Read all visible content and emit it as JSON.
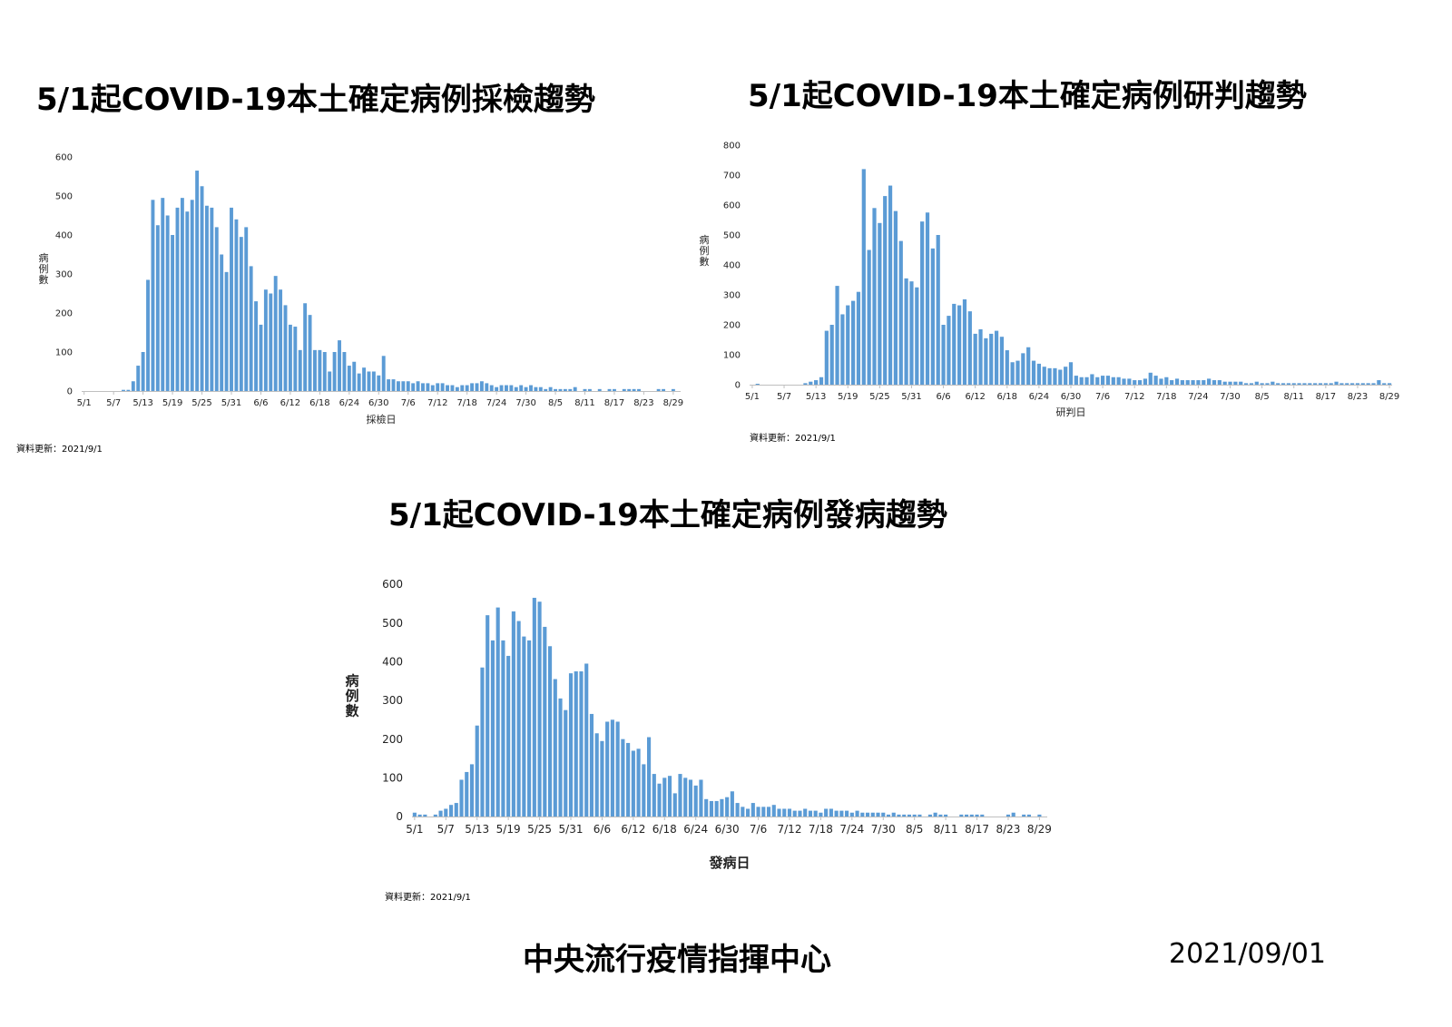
{
  "colors": {
    "bar": "#5B9BD5",
    "axis": "#BFBFBF",
    "text": "#222222"
  },
  "charts": [
    {
      "title": "5/1起COVID-19本土確定病例採檢趨勢",
      "update_text": "資料更新：2021/9/1"
    },
    {
      "title": "5/1起COVID-19本土確定病例研判趨勢",
      "update_text": "資料更新：2021/9/1"
    },
    {
      "title": "5/1起COVID-19本土確定病例發病趨勢",
      "update_text": "資料更新：2021/9/1"
    }
  ],
  "footer": {
    "org": "中央流行疫情指揮中心",
    "date": "2021/09/01"
  },
  "chart_data": [
    {
      "type": "bar",
      "title": "5/1起COVID-19本土確定病例採檢趨勢",
      "xlabel": "採檢日",
      "ylabel": "病例數",
      "ylim": [
        0,
        600
      ],
      "yticks": [
        0,
        100,
        200,
        300,
        400,
        500,
        600
      ],
      "start_date": "5/1",
      "xtick_labels": [
        "5/1",
        "5/7",
        "5/13",
        "5/19",
        "5/25",
        "5/31",
        "6/6",
        "6/12",
        "6/18",
        "6/24",
        "6/30",
        "7/6",
        "7/12",
        "7/18",
        "7/24",
        "7/30",
        "8/5",
        "8/11",
        "8/17",
        "8/23",
        "8/29"
      ],
      "values": [
        0,
        0,
        0,
        0,
        0,
        0,
        0,
        0,
        3,
        3,
        25,
        65,
        100,
        285,
        490,
        425,
        495,
        450,
        400,
        470,
        495,
        460,
        490,
        565,
        525,
        475,
        470,
        420,
        350,
        305,
        470,
        440,
        395,
        420,
        320,
        230,
        170,
        260,
        250,
        295,
        260,
        220,
        170,
        165,
        105,
        225,
        195,
        105,
        105,
        100,
        50,
        100,
        130,
        100,
        65,
        75,
        45,
        60,
        50,
        50,
        40,
        90,
        30,
        30,
        25,
        25,
        25,
        20,
        25,
        20,
        20,
        15,
        20,
        20,
        15,
        15,
        10,
        15,
        15,
        20,
        20,
        25,
        20,
        15,
        10,
        15,
        15,
        15,
        10,
        15,
        10,
        15,
        10,
        10,
        5,
        10,
        5,
        5,
        5,
        5,
        10,
        0,
        5,
        5,
        0,
        5,
        0,
        5,
        5,
        0,
        5,
        5,
        5,
        5,
        0,
        0,
        0,
        5,
        5,
        0,
        5,
        0
      ]
    },
    {
      "type": "bar",
      "title": "5/1起COVID-19本土確定病例研判趨勢",
      "xlabel": "研判日",
      "ylabel": "病例數",
      "ylim": [
        0,
        800
      ],
      "yticks": [
        0,
        100,
        200,
        300,
        400,
        500,
        600,
        700,
        800
      ],
      "start_date": "5/1",
      "xtick_labels": [
        "5/1",
        "5/7",
        "5/13",
        "5/19",
        "5/25",
        "5/31",
        "6/6",
        "6/12",
        "6/18",
        "6/24",
        "6/30",
        "7/6",
        "7/12",
        "7/18",
        "7/24",
        "7/30",
        "8/5",
        "8/11",
        "8/17",
        "8/23",
        "8/29"
      ],
      "values": [
        0,
        3,
        0,
        0,
        0,
        0,
        0,
        0,
        0,
        0,
        5,
        10,
        15,
        25,
        180,
        200,
        330,
        235,
        265,
        280,
        310,
        720,
        450,
        590,
        540,
        630,
        665,
        580,
        480,
        355,
        345,
        325,
        545,
        575,
        455,
        500,
        200,
        230,
        270,
        265,
        285,
        245,
        170,
        185,
        155,
        170,
        180,
        160,
        115,
        75,
        80,
        105,
        125,
        80,
        70,
        60,
        55,
        55,
        50,
        60,
        75,
        30,
        25,
        25,
        35,
        25,
        30,
        30,
        25,
        25,
        20,
        20,
        15,
        15,
        20,
        40,
        30,
        20,
        25,
        15,
        20,
        15,
        15,
        15,
        15,
        15,
        20,
        15,
        15,
        10,
        10,
        10,
        10,
        5,
        5,
        10,
        5,
        5,
        10,
        5,
        5,
        5,
        5,
        5,
        5,
        5,
        5,
        5,
        5,
        5,
        10,
        5,
        5,
        5,
        5,
        5,
        5,
        5,
        15,
        5,
        5
      ]
    },
    {
      "type": "bar",
      "title": "5/1起COVID-19本土確定病例發病趨勢",
      "xlabel": "發病日",
      "ylabel": "病例數",
      "ylim": [
        0,
        600
      ],
      "yticks": [
        0,
        100,
        200,
        300,
        400,
        500,
        600
      ],
      "start_date": "5/1",
      "xtick_labels": [
        "5/1",
        "5/7",
        "5/13",
        "5/19",
        "5/25",
        "5/31",
        "6/6",
        "6/12",
        "6/18",
        "6/24",
        "6/30",
        "7/6",
        "7/12",
        "7/18",
        "7/24",
        "7/30",
        "8/5",
        "8/11",
        "8/17",
        "8/23",
        "8/29"
      ],
      "values": [
        10,
        5,
        5,
        0,
        5,
        15,
        20,
        30,
        35,
        95,
        115,
        135,
        235,
        385,
        520,
        455,
        540,
        455,
        415,
        530,
        505,
        465,
        455,
        565,
        555,
        490,
        440,
        355,
        305,
        275,
        370,
        375,
        375,
        395,
        265,
        215,
        195,
        245,
        250,
        245,
        200,
        190,
        170,
        175,
        135,
        205,
        110,
        85,
        100,
        105,
        60,
        110,
        100,
        95,
        80,
        95,
        45,
        40,
        40,
        45,
        50,
        65,
        35,
        25,
        20,
        35,
        25,
        25,
        25,
        30,
        20,
        20,
        20,
        15,
        15,
        20,
        15,
        15,
        10,
        20,
        20,
        15,
        15,
        15,
        10,
        15,
        10,
        10,
        10,
        10,
        10,
        5,
        10,
        5,
        5,
        5,
        5,
        5,
        0,
        5,
        10,
        5,
        5,
        0,
        0,
        5,
        5,
        5,
        5,
        5,
        0,
        0,
        0,
        0,
        5,
        10,
        0,
        5,
        5,
        0,
        5,
        0
      ]
    }
  ]
}
